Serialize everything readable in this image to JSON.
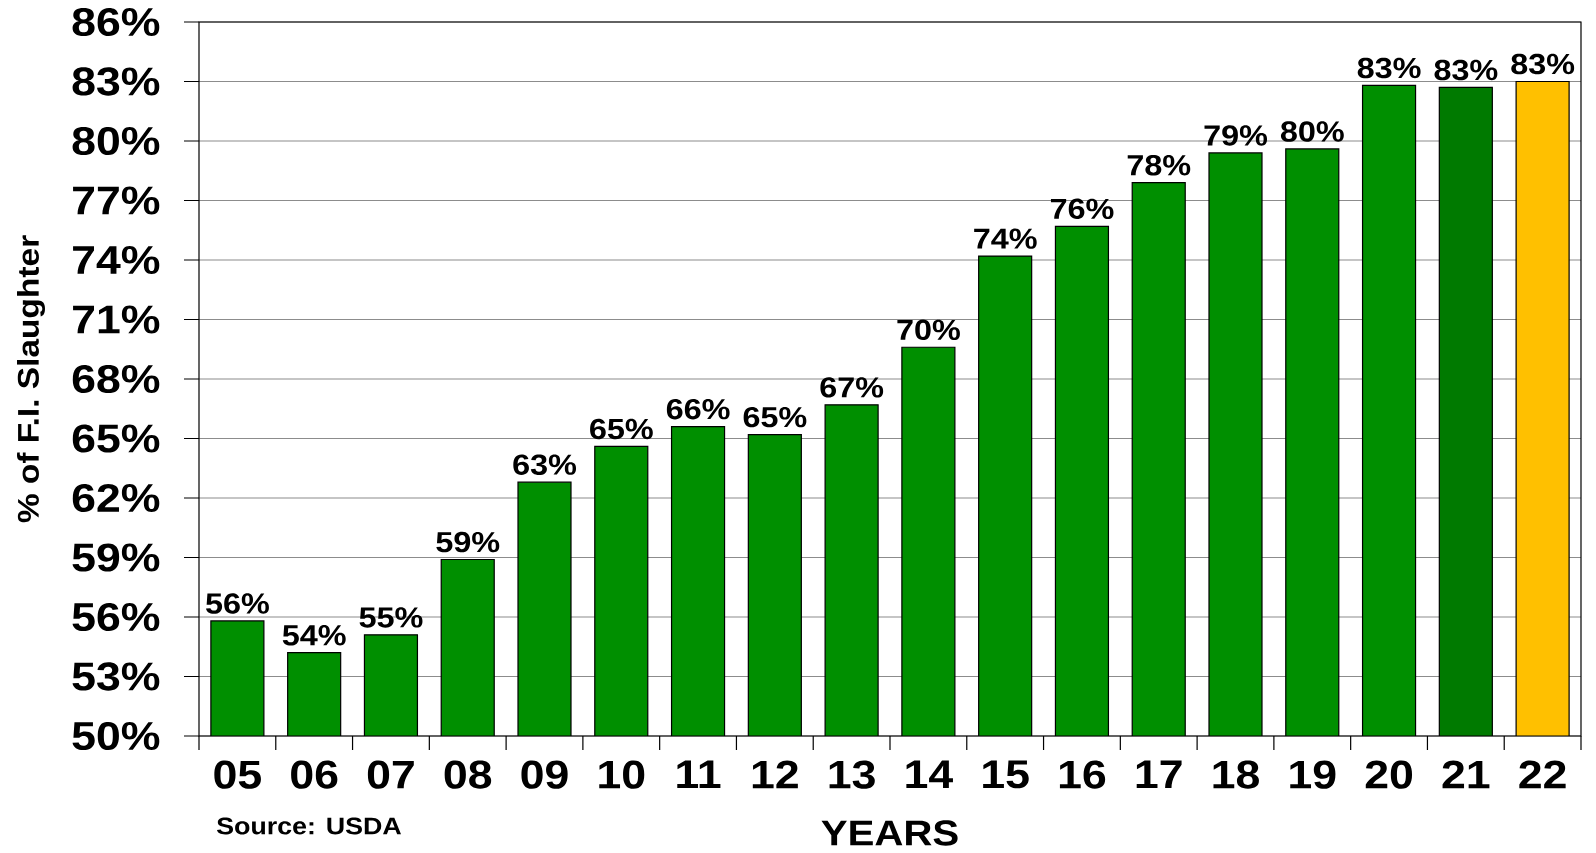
{
  "chart_data": {
    "type": "bar",
    "ylabel": "% of F.I. Slaughter",
    "xlabel": "YEARS",
    "categories": [
      "05",
      "06",
      "07",
      "08",
      "09",
      "10",
      "11",
      "12",
      "13",
      "14",
      "15",
      "16",
      "17",
      "18",
      "19",
      "20",
      "21",
      "22"
    ],
    "values": [
      55.8,
      54.2,
      55.1,
      58.9,
      62.8,
      64.6,
      65.6,
      65.2,
      66.7,
      69.6,
      74.2,
      75.7,
      77.9,
      79.4,
      79.6,
      82.8,
      82.7,
      83.0
    ],
    "colors": [
      "#008f00",
      "#008f00",
      "#008f00",
      "#008f00",
      "#008f00",
      "#008f00",
      "#008f00",
      "#008f00",
      "#008f00",
      "#008f00",
      "#008f00",
      "#008f00",
      "#008f00",
      "#008f00",
      "#008f00",
      "#008f00",
      "#007a00",
      "#ffc000"
    ],
    "value_labels": [
      "56%",
      "54%",
      "55%",
      "59%",
      "63%",
      "65%",
      "66%",
      "65%",
      "67%",
      "70%",
      "74%",
      "76%",
      "78%",
      "79%",
      "80%",
      "83%",
      "83%",
      "83%"
    ],
    "ylim": [
      50,
      86
    ],
    "yticks": [
      {
        "value": 50,
        "label": "50%"
      },
      {
        "value": 53,
        "label": "53%"
      },
      {
        "value": 56,
        "label": "56%"
      },
      {
        "value": 59,
        "label": "59%"
      },
      {
        "value": 62,
        "label": "62%"
      },
      {
        "value": 65,
        "label": "65%"
      },
      {
        "value": 68,
        "label": "68%"
      },
      {
        "value": 71,
        "label": "71%"
      },
      {
        "value": 74,
        "label": "74%"
      },
      {
        "value": 77,
        "label": "77%"
      },
      {
        "value": 80,
        "label": "80%"
      },
      {
        "value": 83,
        "label": "83%"
      },
      {
        "value": 86,
        "label": "86%"
      }
    ],
    "grid": "y",
    "annotations": [
      "Source: USDA"
    ]
  }
}
